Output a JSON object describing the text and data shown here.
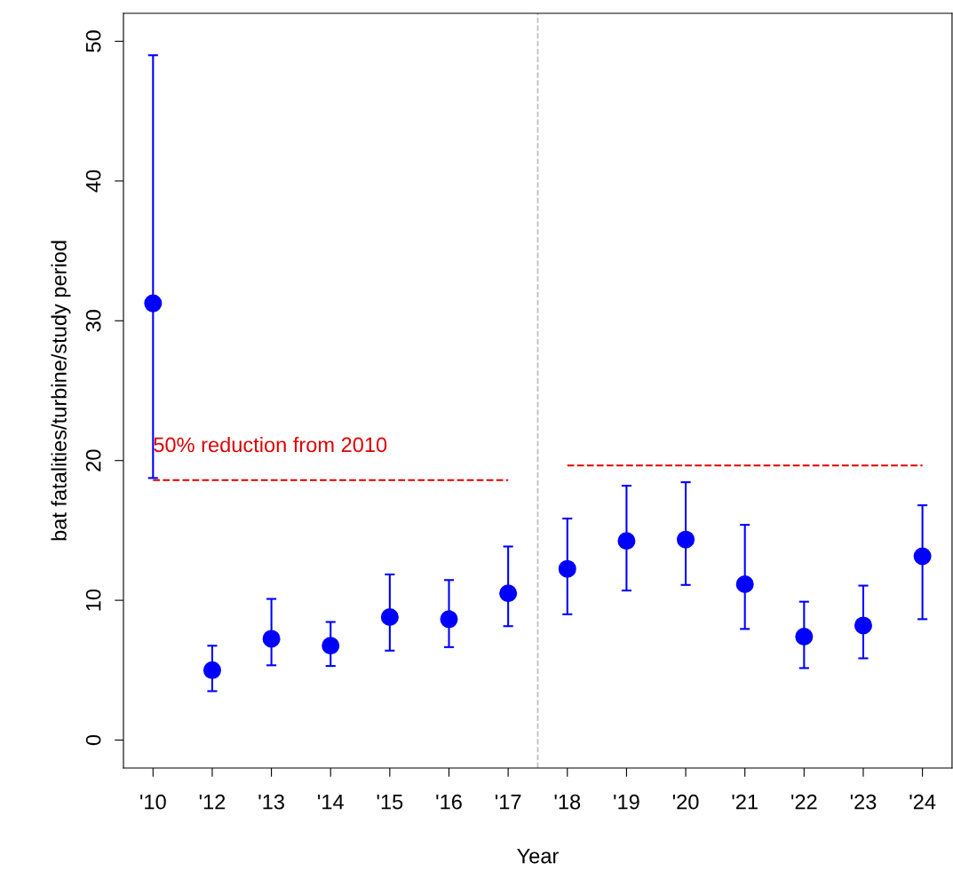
{
  "chart_data": {
    "type": "scatter",
    "xlabel": "Year",
    "ylabel": "bat fatalities/turbine/study period",
    "categories": [
      "'10",
      "'12",
      "'13",
      "'14",
      "'15",
      "'16",
      "'17",
      "'18",
      "'19",
      "'20",
      "'21",
      "'22",
      "'23",
      "'24"
    ],
    "series": [
      {
        "color": "#0000ff",
        "marker": "circle",
        "values": [
          31.25,
          5.0,
          7.25,
          6.75,
          8.8,
          8.65,
          10.5,
          12.25,
          14.25,
          14.35,
          11.15,
          7.4,
          8.2,
          13.15
        ],
        "errors": [
          [
            18.75,
            49.0
          ],
          [
            3.5,
            6.75
          ],
          [
            5.35,
            10.1
          ],
          [
            5.3,
            8.45
          ],
          [
            6.4,
            11.85
          ],
          [
            6.65,
            11.45
          ],
          [
            8.15,
            13.85
          ],
          [
            9.0,
            15.85
          ],
          [
            10.7,
            18.2
          ],
          [
            11.1,
            18.45
          ],
          [
            7.95,
            15.4
          ],
          [
            5.15,
            9.9
          ],
          [
            5.85,
            11.05
          ],
          [
            8.65,
            16.8
          ]
        ]
      },
      {
        "type": "line",
        "color": "#dd0000",
        "line_style": "dashed",
        "values": [
          18.6,
          18.6,
          18.6,
          18.6,
          18.6,
          18.6,
          18.6,
          null,
          null,
          null,
          null,
          null,
          null,
          null
        ]
      },
      {
        "type": "line",
        "color": "#dd0000",
        "line_style": "dashed",
        "values": [
          null,
          null,
          null,
          null,
          null,
          null,
          null,
          19.65,
          19.65,
          19.65,
          19.65,
          19.65,
          19.65,
          19.65
        ]
      }
    ],
    "annotations": [
      {
        "text": "50% reduction from 2010",
        "x": "'10",
        "y": 20.3
      }
    ],
    "ylim": [
      -2,
      52
    ],
    "yticks": [
      0,
      10,
      20,
      30,
      40,
      50
    ],
    "grid": false,
    "legend": false
  }
}
